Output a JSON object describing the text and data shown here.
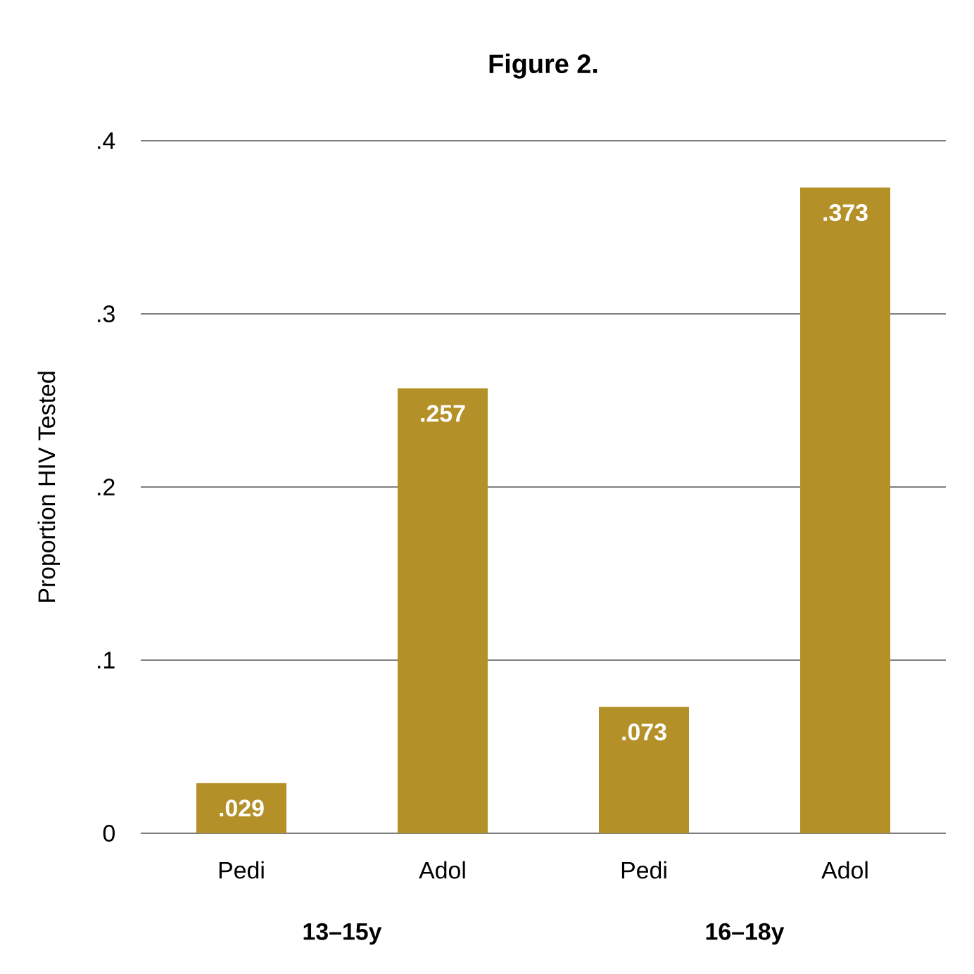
{
  "chart_data": {
    "type": "bar",
    "title": "Figure 2.",
    "ylabel": "Proportion HIV Tested",
    "categories": [
      "Pedi",
      "Adol",
      "Pedi",
      "Adol"
    ],
    "values": [
      0.029,
      0.257,
      0.073,
      0.373
    ],
    "value_labels": [
      ".029",
      ".257",
      ".073",
      ".373"
    ],
    "color": "#b39128",
    "ylim": [
      0,
      0.4
    ],
    "yticks": [
      0,
      {
        "value": 0.1,
        "label": ".1"
      },
      {
        "value": 0.2,
        "label": ".2"
      },
      {
        "value": 0.3,
        "label": ".3"
      },
      {
        "value": 0.4,
        "label": ".4"
      }
    ],
    "grid": "y",
    "annotations": [
      "13–15y",
      "16–18y"
    ]
  }
}
